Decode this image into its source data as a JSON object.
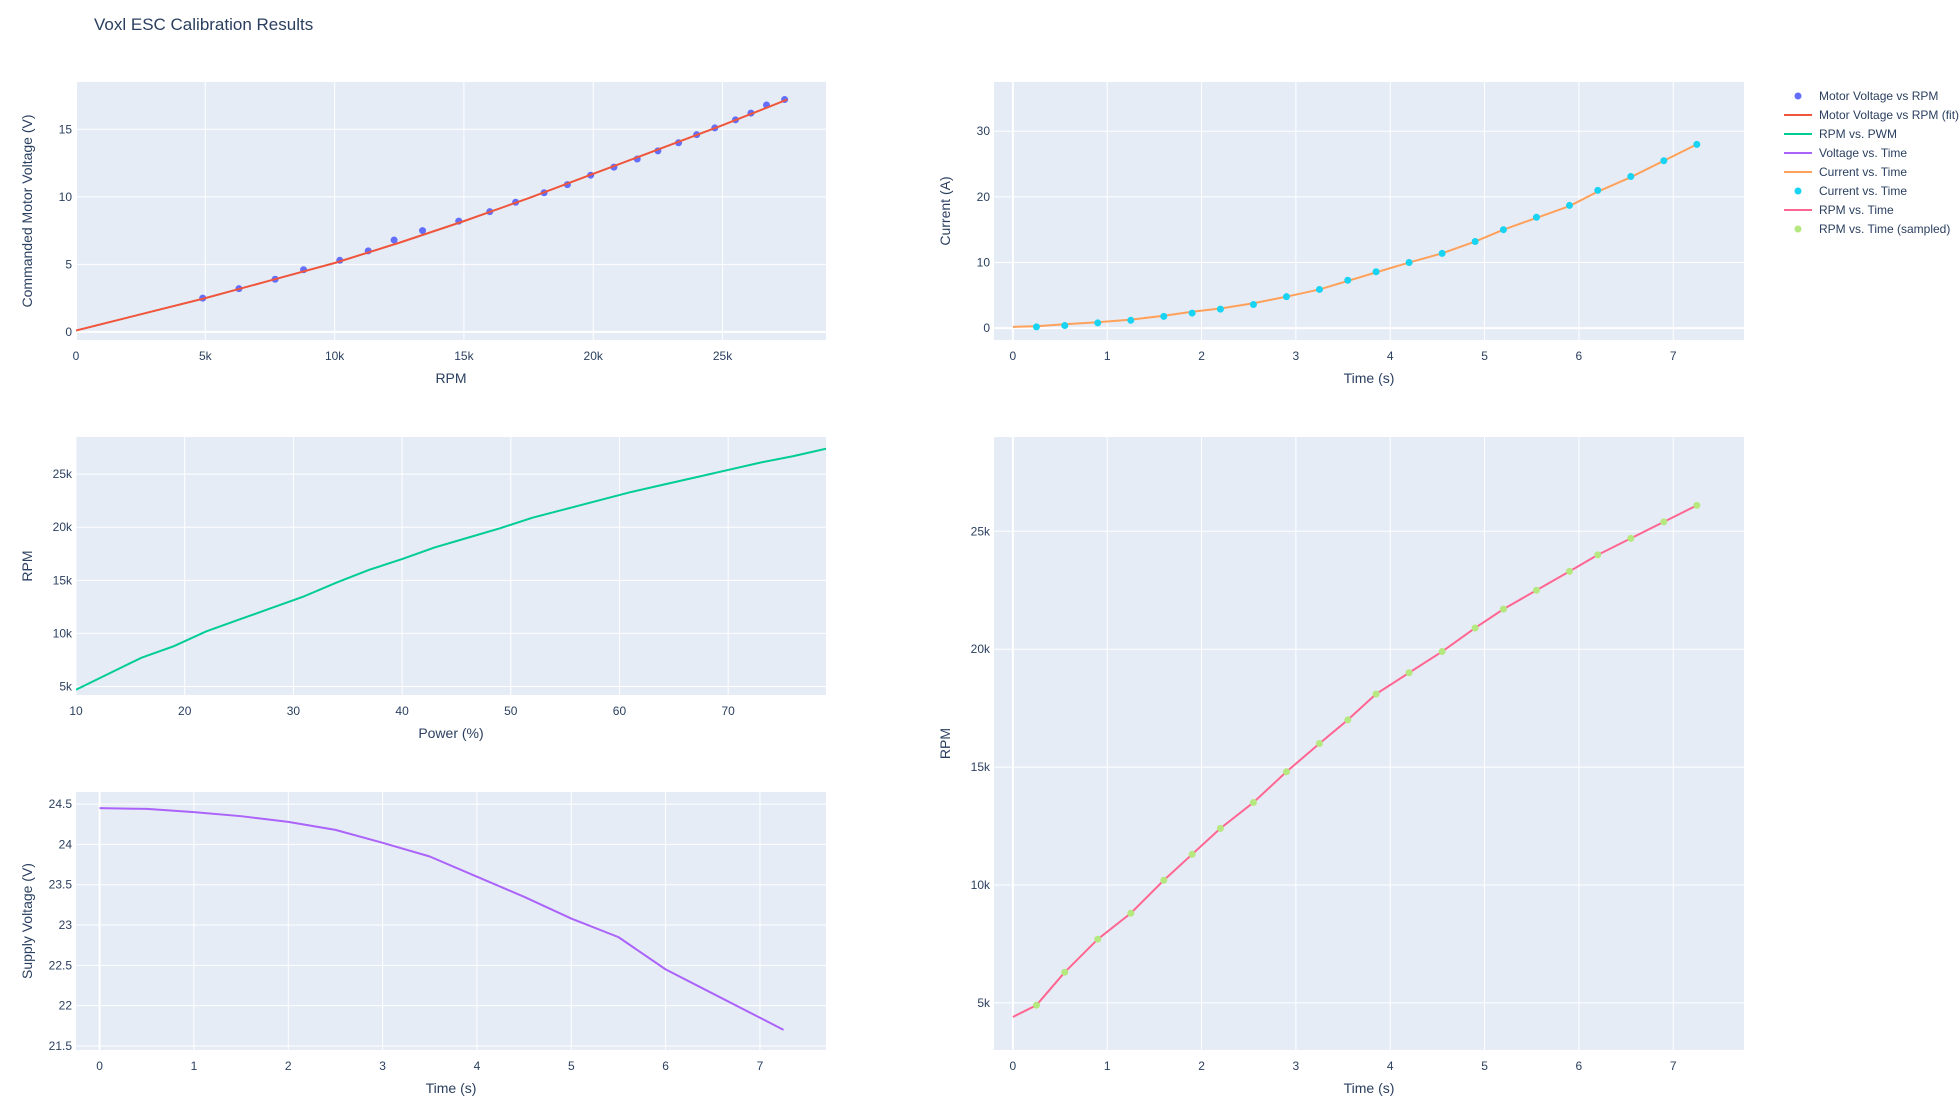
{
  "title": "Voxl ESC Calibration Results",
  "colors": {
    "plot_bg": "#E5ECF6",
    "grid": "#ffffff",
    "text": "#2a3f5f",
    "voltage_rpm_points": "#636EFA",
    "voltage_rpm_fit": "#EF553B",
    "rpm_pwm": "#00CC96",
    "voltage_time": "#AB63FA",
    "current_time": "#FFA15A",
    "current_time_points": "#19D3F3",
    "rpm_time": "#FF6692",
    "rpm_time_points": "#B6E880"
  },
  "legend": {
    "placement": "right",
    "entries": [
      {
        "name": "Motor Voltage vs RPM",
        "kind": "marker",
        "color": "#636EFA"
      },
      {
        "name": "Motor Voltage vs RPM (fit)",
        "kind": "line",
        "color": "#EF553B"
      },
      {
        "name": "RPM vs. PWM",
        "kind": "line",
        "color": "#00CC96"
      },
      {
        "name": "Voltage vs. Time",
        "kind": "line",
        "color": "#AB63FA"
      },
      {
        "name": "Current vs. Time",
        "kind": "line",
        "color": "#FFA15A"
      },
      {
        "name": "Current vs. Time",
        "kind": "marker",
        "color": "#19D3F3"
      },
      {
        "name": "RPM vs. Time",
        "kind": "line",
        "color": "#FF6692"
      },
      {
        "name": "RPM vs. Time (sampled)",
        "kind": "marker",
        "color": "#B6E880"
      }
    ]
  },
  "chart_data": [
    {
      "id": "voltage_vs_rpm",
      "type": "scatter",
      "xlabel": "RPM",
      "ylabel": "Commanded Motor Voltage (V)",
      "xlim": [
        0,
        29000
      ],
      "ylim": [
        -0.6,
        18.5
      ],
      "xticks": [
        0,
        5000,
        10000,
        15000,
        20000,
        25000
      ],
      "xtick_labels": [
        "0",
        "5k",
        "10k",
        "15k",
        "20k",
        "25k"
      ],
      "yticks": [
        0,
        5,
        10,
        15
      ],
      "ytick_labels": [
        "0",
        "5",
        "10",
        "15"
      ],
      "series": [
        {
          "name": "Motor Voltage vs RPM",
          "mode": "markers",
          "x": [
            4900,
            6300,
            7700,
            8800,
            10200,
            11300,
            12300,
            13400,
            14800,
            16000,
            17000,
            18100,
            19000,
            19900,
            20800,
            21700,
            22500,
            23300,
            24000,
            24700,
            25500,
            26100,
            26700,
            27400
          ],
          "y": [
            2.5,
            3.2,
            3.9,
            4.6,
            5.3,
            6.0,
            6.8,
            7.5,
            8.2,
            8.9,
            9.6,
            10.3,
            10.9,
            11.6,
            12.2,
            12.8,
            13.4,
            14.0,
            14.6,
            15.1,
            15.7,
            16.2,
            16.8,
            17.2
          ]
        },
        {
          "name": "Motor Voltage vs RPM (fit)",
          "mode": "lines",
          "x": [
            0,
            2500,
            5000,
            7500,
            10000,
            12500,
            15000,
            17500,
            20000,
            22500,
            25000,
            27500
          ],
          "y": [
            0.1,
            1.3,
            2.5,
            3.8,
            5.1,
            6.6,
            8.2,
            9.9,
            11.7,
            13.5,
            15.3,
            17.2
          ]
        }
      ]
    },
    {
      "id": "rpm_vs_power",
      "type": "line",
      "xlabel": "Power (%)",
      "ylabel": "RPM",
      "xlim": [
        10,
        79
      ],
      "ylim": [
        4200,
        28500
      ],
      "xticks": [
        10,
        20,
        30,
        40,
        50,
        60,
        70
      ],
      "xtick_labels": [
        "10",
        "20",
        "30",
        "40",
        "50",
        "60",
        "70"
      ],
      "yticks": [
        5000,
        10000,
        15000,
        20000,
        25000
      ],
      "ytick_labels": [
        "5k",
        "10k",
        "15k",
        "20k",
        "25k"
      ],
      "series": [
        {
          "name": "RPM vs. PWM",
          "x": [
            10,
            13,
            16,
            19,
            22,
            25,
            28,
            31,
            34,
            37,
            40,
            43,
            46,
            49,
            52,
            55,
            58,
            61,
            64,
            67,
            70,
            73,
            76,
            79
          ],
          "y": [
            4700,
            6200,
            7700,
            8800,
            10200,
            11300,
            12400,
            13500,
            14800,
            16000,
            17000,
            18100,
            19000,
            19900,
            20900,
            21700,
            22500,
            23300,
            24000,
            24700,
            25400,
            26100,
            26700,
            27400
          ]
        }
      ]
    },
    {
      "id": "supply_voltage_vs_time",
      "type": "line",
      "xlabel": "Time (s)",
      "ylabel": "Supply Voltage (V)",
      "xlim": [
        -0.25,
        7.7
      ],
      "ylim": [
        21.45,
        24.65
      ],
      "xticks": [
        0,
        1,
        2,
        3,
        4,
        5,
        6,
        7
      ],
      "xtick_labels": [
        "0",
        "1",
        "2",
        "3",
        "4",
        "5",
        "6",
        "7"
      ],
      "yticks": [
        21.5,
        22,
        22.5,
        23,
        23.5,
        24,
        24.5
      ],
      "ytick_labels": [
        "21.5",
        "22",
        "22.5",
        "23",
        "23.5",
        "24",
        "24.5"
      ],
      "series": [
        {
          "name": "Voltage vs. Time",
          "x": [
            0,
            0.5,
            1,
            1.5,
            2,
            2.5,
            3,
            3.5,
            4,
            4.5,
            5,
            5.5,
            6,
            6.5,
            7,
            7.25
          ],
          "y": [
            24.45,
            24.44,
            24.4,
            24.35,
            24.28,
            24.18,
            24.02,
            23.85,
            23.6,
            23.35,
            23.08,
            22.85,
            22.45,
            22.15,
            21.85,
            21.7
          ]
        }
      ]
    },
    {
      "id": "current_vs_time",
      "type": "line",
      "xlabel": "Time (s)",
      "ylabel": "Current (A)",
      "xlim": [
        -0.2,
        7.75
      ],
      "ylim": [
        -1.8,
        37.5
      ],
      "xticks": [
        0,
        1,
        2,
        3,
        4,
        5,
        6,
        7
      ],
      "xtick_labels": [
        "0",
        "1",
        "2",
        "3",
        "4",
        "5",
        "6",
        "7"
      ],
      "yticks": [
        0,
        10,
        20,
        30
      ],
      "ytick_labels": [
        "0",
        "10",
        "20",
        "30"
      ],
      "series": [
        {
          "name": "Current vs. Time",
          "mode": "lines",
          "x": [
            0,
            0.25,
            0.55,
            0.9,
            1.25,
            1.6,
            1.9,
            2.2,
            2.55,
            2.9,
            3.25,
            3.55,
            3.85,
            4.2,
            4.55,
            4.9,
            5.2,
            5.55,
            5.9,
            6.2,
            6.55,
            6.9,
            7.25
          ],
          "y": [
            0.2,
            0.3,
            0.6,
            0.9,
            1.3,
            1.9,
            2.5,
            3.0,
            3.8,
            4.8,
            5.9,
            7.2,
            8.5,
            10.0,
            11.4,
            13.2,
            15.0,
            16.8,
            18.6,
            20.8,
            23.0,
            25.5,
            28.0
          ]
        },
        {
          "name": "Current vs. Time",
          "mode": "markers",
          "x": [
            0.25,
            0.55,
            0.9,
            1.25,
            1.6,
            1.9,
            2.2,
            2.55,
            2.9,
            3.25,
            3.55,
            3.85,
            4.2,
            4.55,
            4.9,
            5.2,
            5.55,
            5.9,
            6.2,
            6.55,
            6.9,
            7.25
          ],
          "y": [
            0.2,
            0.4,
            0.8,
            1.2,
            1.8,
            2.3,
            2.9,
            3.6,
            4.8,
            5.9,
            7.3,
            8.6,
            10.0,
            11.4,
            13.2,
            15.0,
            16.9,
            18.7,
            21.0,
            23.1,
            25.5,
            28.0
          ]
        }
      ]
    },
    {
      "id": "rpm_vs_time",
      "type": "line",
      "xlabel": "Time (s)",
      "ylabel": "RPM",
      "xlim": [
        -0.2,
        7.75
      ],
      "ylim": [
        3000,
        29000
      ],
      "xticks": [
        0,
        1,
        2,
        3,
        4,
        5,
        6,
        7
      ],
      "xtick_labels": [
        "0",
        "1",
        "2",
        "3",
        "4",
        "5",
        "6",
        "7"
      ],
      "yticks": [
        5000,
        10000,
        15000,
        20000,
        25000
      ],
      "ytick_labels": [
        "5k",
        "10k",
        "15k",
        "20k",
        "25k"
      ],
      "series": [
        {
          "name": "RPM vs. Time",
          "mode": "lines",
          "x": [
            0,
            0.25,
            0.55,
            0.9,
            1.25,
            1.6,
            1.9,
            2.2,
            2.55,
            2.9,
            3.25,
            3.55,
            3.85,
            4.2,
            4.55,
            4.9,
            5.2,
            5.55,
            5.9,
            6.2,
            6.55,
            6.9,
            7.25
          ],
          "y": [
            4400,
            4900,
            6300,
            7700,
            8800,
            10200,
            11300,
            12400,
            13500,
            14800,
            16000,
            17000,
            18100,
            19000,
            19900,
            20900,
            21700,
            22500,
            23300,
            24000,
            24700,
            25400,
            26100
          ]
        },
        {
          "name": "RPM vs. Time (sampled)",
          "mode": "markers",
          "x": [
            0.25,
            0.55,
            0.9,
            1.25,
            1.6,
            1.9,
            2.2,
            2.55,
            2.9,
            3.25,
            3.55,
            3.85,
            4.2,
            4.55,
            4.9,
            5.2,
            5.55,
            5.9,
            6.2,
            6.55,
            6.9,
            7.25
          ],
          "y": [
            4900,
            6300,
            7700,
            8800,
            10200,
            11300,
            12400,
            13500,
            14800,
            16000,
            17000,
            18100,
            19000,
            19900,
            20900,
            21700,
            22500,
            23300,
            24000,
            24700,
            25400,
            26100
          ]
        }
      ]
    }
  ]
}
